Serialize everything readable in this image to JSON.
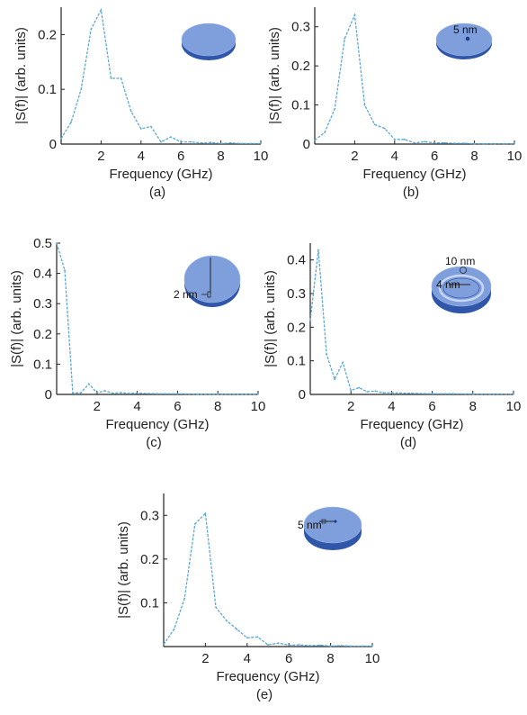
{
  "colors": {
    "series": "#5aa8d8",
    "disk_top": "#7f9fdc",
    "disk_side": "#2f56a8",
    "axis": "#222222"
  },
  "chart_data": [
    {
      "type": "line",
      "panel_label": "(a)",
      "xlabel": "Frequency (GHz)",
      "ylabel": "|S(f)| (arb. units)",
      "xlim": [
        0,
        10
      ],
      "ylim": [
        0,
        0.25
      ],
      "xticks": [
        2,
        4,
        6,
        8,
        10
      ],
      "yticks": [
        0,
        0.1,
        0.2
      ],
      "inset": {
        "icon": "disk-icon",
        "label": ""
      },
      "series": [
        {
          "x": [
            0,
            0.5,
            1,
            1.5,
            2,
            2.5,
            3,
            3.5,
            4,
            4.5,
            5,
            5.5,
            6,
            6.5,
            7,
            7.5,
            8,
            8.5,
            9,
            9.5,
            10
          ],
          "y": [
            0.01,
            0.04,
            0.1,
            0.21,
            0.245,
            0.12,
            0.12,
            0.06,
            0.028,
            0.032,
            0.004,
            0.013,
            0.004,
            0.004,
            0.002,
            0.003,
            0.001,
            0.002,
            0.001,
            0.001,
            0.001
          ]
        }
      ]
    },
    {
      "type": "line",
      "panel_label": "(b)",
      "xlabel": "Frequency (GHz)",
      "ylabel": "|S(f)| (arb. units)",
      "xlim": [
        0,
        10
      ],
      "ylim": [
        0,
        0.35
      ],
      "xticks": [
        2,
        4,
        6,
        8,
        10
      ],
      "yticks": [
        0,
        0.1,
        0.2,
        0.3
      ],
      "inset": {
        "icon": "disk-with-dot-icon",
        "label": "5 nm"
      },
      "series": [
        {
          "x": [
            0,
            0.5,
            1,
            1.5,
            2,
            2.5,
            3,
            3.5,
            4,
            4.5,
            5,
            5.5,
            6,
            6.5,
            7,
            7.5,
            8,
            8.5,
            9,
            9.5,
            10
          ],
          "y": [
            0.01,
            0.03,
            0.09,
            0.27,
            0.33,
            0.1,
            0.05,
            0.04,
            0.012,
            0.012,
            0.003,
            0.006,
            0.003,
            0.003,
            0.002,
            0.002,
            0.001,
            0.001,
            0.001,
            0.001,
            0.001
          ]
        }
      ]
    },
    {
      "type": "line",
      "panel_label": "(c)",
      "xlabel": "Frequency (GHz)",
      "ylabel": "|S(f)| (arb. units)",
      "xlim": [
        0,
        10
      ],
      "ylim": [
        0,
        0.5
      ],
      "xticks": [
        2,
        4,
        6,
        8,
        10
      ],
      "yticks": [
        0,
        0.1,
        0.2,
        0.3,
        0.4,
        0.5
      ],
      "inset": {
        "icon": "disk-with-cut-icon",
        "label": "2 nm"
      },
      "series": [
        {
          "x": [
            0,
            0.4,
            0.8,
            1.2,
            1.6,
            2,
            2.4,
            2.8,
            3.2,
            3.6,
            4,
            5,
            6,
            7,
            8,
            9,
            10
          ],
          "y": [
            0.5,
            0.41,
            0.005,
            0.005,
            0.035,
            0.005,
            0.012,
            0.004,
            0.006,
            0.003,
            0.004,
            0.002,
            0.002,
            0.001,
            0.001,
            0.001,
            0.001
          ]
        }
      ]
    },
    {
      "type": "line",
      "panel_label": "(d)",
      "xlabel": "Frequency (GHz)",
      "ylabel": "|S(f)| (arb. units)",
      "xlim": [
        0,
        10
      ],
      "ylim": [
        0,
        0.45
      ],
      "xticks": [
        2,
        4,
        6,
        8,
        10
      ],
      "yticks": [
        0,
        0.1,
        0.2,
        0.3,
        0.4
      ],
      "inset": {
        "icon": "ring-disk-icon",
        "label": "10 nm",
        "label2": "4 nm"
      },
      "series": [
        {
          "x": [
            0,
            0.4,
            0.8,
            1.2,
            1.6,
            2,
            2.4,
            2.8,
            3.2,
            3.6,
            4,
            5,
            6,
            7,
            8,
            9,
            10
          ],
          "y": [
            0.22,
            0.43,
            0.12,
            0.045,
            0.095,
            0.012,
            0.02,
            0.008,
            0.01,
            0.005,
            0.005,
            0.003,
            0.002,
            0.002,
            0.001,
            0.001,
            0.001
          ]
        }
      ]
    },
    {
      "type": "line",
      "panel_label": "(e)",
      "xlabel": "Frequency (GHz)",
      "ylabel": "|S(f)| (arb. units)",
      "xlim": [
        0,
        10
      ],
      "ylim": [
        0,
        0.35
      ],
      "xticks": [
        2,
        4,
        6,
        8,
        10
      ],
      "yticks": [
        0.1,
        0.2,
        0.3
      ],
      "inset": {
        "icon": "disk-with-line-icon",
        "label": "5 nm"
      },
      "series": [
        {
          "x": [
            0,
            0.5,
            1,
            1.5,
            2,
            2.5,
            3,
            3.5,
            4,
            4.5,
            5,
            5.5,
            6,
            6.5,
            7,
            7.5,
            8,
            8.5,
            9,
            9.5,
            10
          ],
          "y": [
            0.005,
            0.04,
            0.11,
            0.28,
            0.305,
            0.09,
            0.06,
            0.04,
            0.02,
            0.022,
            0.004,
            0.008,
            0.003,
            0.004,
            0.002,
            0.003,
            0.001,
            0.002,
            0.001,
            0.001,
            0.001
          ]
        }
      ]
    }
  ]
}
